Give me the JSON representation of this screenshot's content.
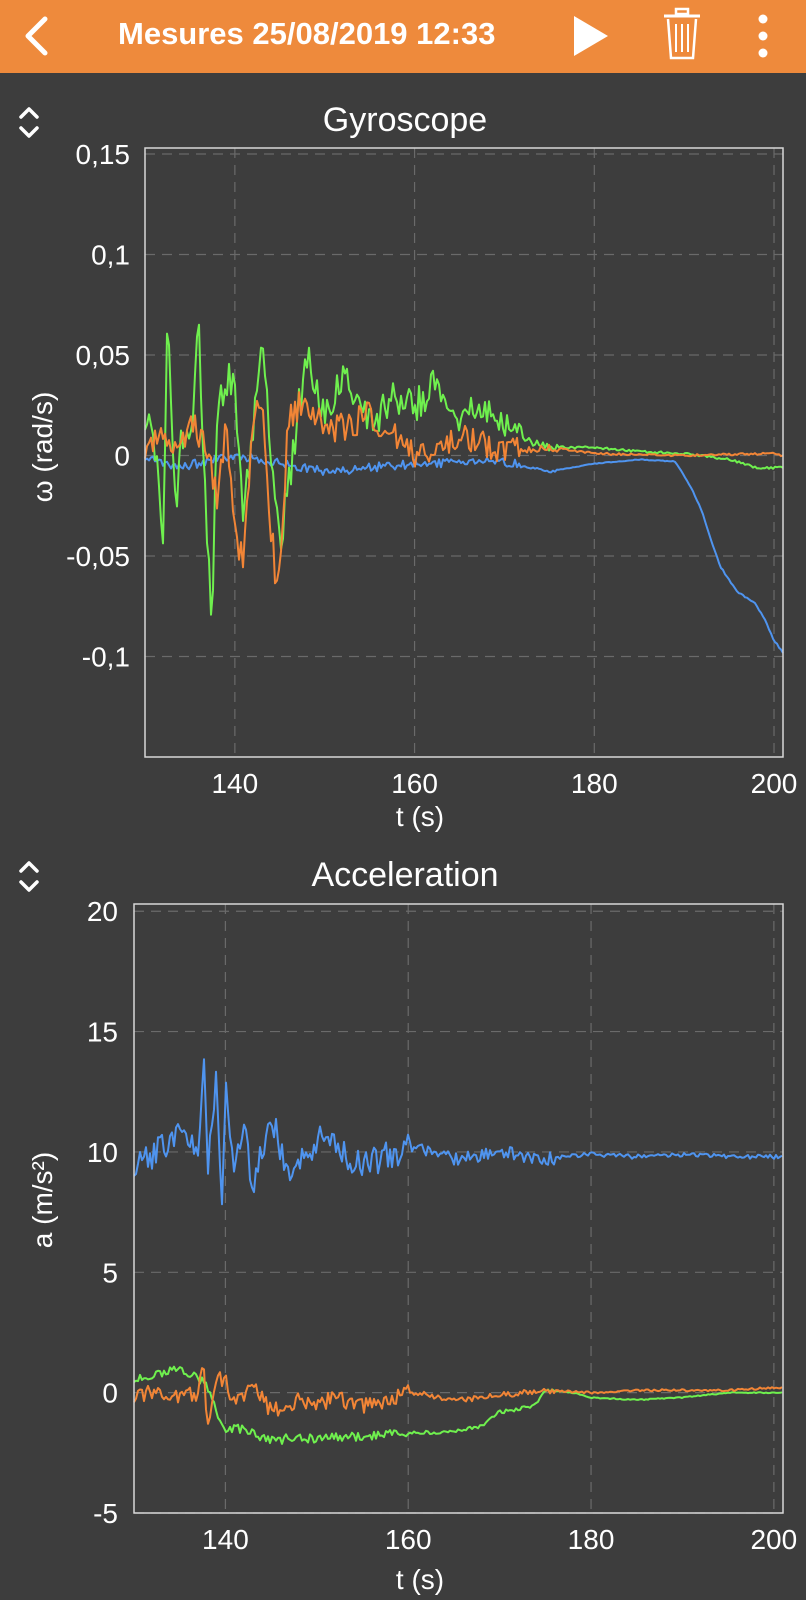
{
  "header": {
    "title": "Mesures 25/08/2019 12:33",
    "back_icon": "chevron-left-icon",
    "play_icon": "play-icon",
    "delete_icon": "trash-icon",
    "more_icon": "more-vertical-icon",
    "bg_color": "#ee8a3c"
  },
  "chart_data": [
    {
      "type": "line",
      "title": "Gyroscope",
      "xlabel": "t (s)",
      "ylabel": "ω (rad/s)",
      "xlim": [
        130,
        201
      ],
      "ylim": [
        -0.15,
        0.153
      ],
      "x_ticks": [
        140,
        160,
        180,
        200
      ],
      "x_tick_labels": [
        "140",
        "160",
        "180",
        "200"
      ],
      "y_ticks": [
        0.15,
        0.1,
        0.05,
        0,
        -0.05,
        -0.1
      ],
      "y_tick_labels": [
        "0,15",
        "0,1",
        "0,05",
        "0",
        "-0,05",
        "-0,1"
      ],
      "grid": true,
      "series": [
        {
          "color": "#4f94ef",
          "x": [
            130,
            133,
            136,
            140,
            150,
            160,
            170,
            175,
            180,
            185,
            189,
            190,
            191,
            192,
            193,
            194,
            195,
            196,
            197,
            198,
            199,
            200,
            201
          ],
          "y": [
            0.0,
            -0.006,
            -0.004,
            0.0,
            -0.008,
            -0.004,
            -0.003,
            -0.008,
            -0.004,
            -0.002,
            -0.003,
            -0.01,
            -0.018,
            -0.028,
            -0.042,
            -0.055,
            -0.062,
            -0.068,
            -0.071,
            -0.074,
            -0.082,
            -0.092,
            -0.098
          ]
        },
        {
          "color": "#6ff04e",
          "x": [
            130,
            131,
            132,
            132.5,
            133,
            133.5,
            134,
            135,
            136,
            136.5,
            137,
            137.5,
            138,
            139,
            140,
            141,
            143,
            145,
            148,
            150,
            152,
            155,
            158,
            160,
            162,
            165,
            168,
            170,
            172,
            175,
            180,
            185,
            190,
            195,
            198,
            201
          ],
          "y": [
            0.02,
            0.01,
            -0.04,
            0.07,
            0.02,
            -0.03,
            0.01,
            0.005,
            0.07,
            0.0,
            -0.045,
            -0.085,
            0.02,
            0.04,
            0.035,
            -0.03,
            0.05,
            -0.045,
            0.05,
            0.02,
            0.04,
            0.015,
            0.03,
            0.025,
            0.035,
            0.02,
            0.025,
            0.015,
            0.008,
            0.004,
            0.004,
            0.002,
            0.001,
            -0.002,
            -0.006,
            -0.006
          ]
        },
        {
          "color": "#f28536",
          "x": [
            130,
            132,
            134,
            135,
            136,
            137,
            138,
            139,
            140,
            141,
            142,
            143,
            144,
            145,
            146,
            148,
            150,
            155,
            160,
            165,
            170,
            175,
            180,
            190,
            200,
            201
          ],
          "y": [
            0.005,
            0.01,
            0.0,
            0.02,
            0.01,
            0.002,
            -0.02,
            0.012,
            -0.035,
            -0.055,
            0.02,
            0.03,
            -0.04,
            -0.07,
            0.02,
            0.03,
            0.01,
            0.02,
            0.0,
            0.01,
            0.002,
            0.004,
            0.001,
            0.0,
            0.001,
            0.0
          ]
        }
      ]
    },
    {
      "type": "line",
      "title": "Acceleration",
      "xlabel": "t (s)",
      "ylabel": "a (m/s²)",
      "xlim": [
        130,
        201
      ],
      "ylim": [
        -5,
        20.3
      ],
      "x_ticks": [
        140,
        160,
        180,
        200
      ],
      "x_tick_labels": [
        "140",
        "160",
        "180",
        "200"
      ],
      "y_ticks": [
        20,
        15,
        10,
        5,
        0,
        -5
      ],
      "y_tick_labels": [
        "20",
        "15",
        "10",
        "5",
        "0",
        "-5"
      ],
      "grid": true,
      "series": [
        {
          "color": "#4f94ef",
          "x": [
            130,
            132,
            134,
            135,
            136,
            137,
            137.7,
            138,
            139,
            139.6,
            140,
            141,
            142,
            143,
            145,
            147,
            150,
            155,
            160,
            165,
            170,
            175,
            180,
            185,
            190,
            195,
            200,
            201
          ],
          "y": [
            9.6,
            9.9,
            10.5,
            10.8,
            10.5,
            9.8,
            14.0,
            9.0,
            13.2,
            7.0,
            12.5,
            9.0,
            11.5,
            8.5,
            11.5,
            9.0,
            10.5,
            9.5,
            10.2,
            9.7,
            10.0,
            9.7,
            9.9,
            9.8,
            9.9,
            9.8,
            9.8,
            9.8
          ]
        },
        {
          "color": "#6ff04e",
          "x": [
            130,
            133,
            135,
            136,
            137,
            138,
            139,
            140,
            141,
            143,
            145,
            147,
            150,
            155,
            158,
            160,
            165,
            168,
            170,
            172,
            174,
            175,
            178,
            180,
            185,
            190,
            195,
            200,
            201
          ],
          "y": [
            0.6,
            0.8,
            1.0,
            0.8,
            0.6,
            0.3,
            -0.8,
            -1.6,
            -1.4,
            -1.7,
            -2.0,
            -1.9,
            -1.9,
            -1.8,
            -1.7,
            -1.7,
            -1.6,
            -1.4,
            -0.8,
            -0.7,
            -0.5,
            0.1,
            0.0,
            -0.2,
            -0.3,
            -0.2,
            0.0,
            0.0,
            0.0
          ]
        },
        {
          "color": "#f28536",
          "x": [
            130,
            132,
            135,
            137,
            137.6,
            138,
            139,
            140,
            141,
            143,
            145,
            148,
            150,
            152,
            155,
            160,
            165,
            170,
            175,
            180,
            185,
            190,
            195,
            200,
            201
          ],
          "y": [
            -0.1,
            0.0,
            -0.2,
            0.0,
            1.5,
            -1.8,
            0.5,
            0.6,
            -0.5,
            0.3,
            -0.8,
            -0.3,
            -0.5,
            -0.2,
            -0.6,
            0.0,
            -0.3,
            -0.1,
            0.1,
            0.0,
            0.1,
            0.1,
            0.1,
            0.2,
            0.2
          ]
        }
      ]
    }
  ]
}
